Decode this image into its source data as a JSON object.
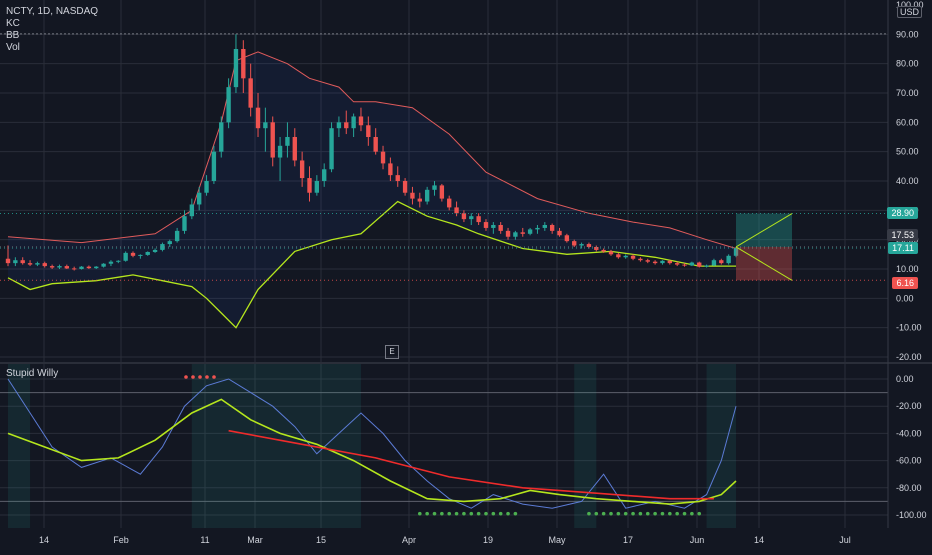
{
  "header": {
    "symbol_line": "NCTY, 1D, NASDAQ",
    "indicators": [
      "KC",
      "BB",
      "Vol"
    ],
    "currency_badge": "USD",
    "top_tick": "100.00"
  },
  "lower_pane": {
    "title": "Stupid Willy"
  },
  "earnings_marker": "E",
  "price_tags": [
    {
      "label": "28.90",
      "color": "#26a69a"
    },
    {
      "label": "17.53",
      "color": "#363a45"
    },
    {
      "label": "17.11",
      "color": "#26a69a"
    },
    {
      "label": "6.16",
      "color": "#ef5350"
    }
  ],
  "colors": {
    "background": "#131722",
    "bull": "#26a69a",
    "bear": "#ef5350",
    "kc_upper": "#e05b5b",
    "bb_lower": "#b5e61d",
    "grid": "#2a2e39",
    "text": "#d1d4dc"
  },
  "chart_data": [
    {
      "type": "candlestick",
      "title": "NCTY, 1D, NASDAQ",
      "x_ticks": [
        "14",
        "Feb",
        "11",
        "Mar",
        "15",
        "Apr",
        "19",
        "May",
        "17",
        "Jun",
        "14",
        "Jul"
      ],
      "y_ticks": [
        "-20.00",
        "-10.00",
        "0.00",
        "10.00",
        "20.00",
        "30.00",
        "40.00",
        "50.00",
        "60.00",
        "70.00",
        "80.00",
        "90.00",
        "100.00"
      ],
      "ylim": [
        -20,
        100
      ],
      "ohlc": [
        [
          13.5,
          18,
          11,
          12
        ],
        [
          12,
          14,
          11,
          13
        ],
        [
          13,
          14,
          11.5,
          12
        ],
        [
          12,
          13,
          11,
          11.5
        ],
        [
          11.5,
          12.5,
          11,
          12
        ],
        [
          12,
          12.5,
          10.5,
          11
        ],
        [
          11,
          11.5,
          10,
          10.5
        ],
        [
          10.5,
          11.5,
          10,
          11
        ],
        [
          11,
          11.5,
          10,
          10.2
        ],
        [
          10.2,
          10.8,
          9.5,
          10
        ],
        [
          10,
          11,
          9.8,
          10.8
        ],
        [
          10.8,
          11.2,
          10,
          10.3
        ],
        [
          10.3,
          11,
          10,
          10.8
        ],
        [
          10.8,
          12,
          10.5,
          11.8
        ],
        [
          11.8,
          13,
          11,
          12.5
        ],
        [
          12.5,
          13,
          12,
          12.8
        ],
        [
          12.8,
          16,
          12.5,
          15.5
        ],
        [
          15.5,
          16,
          14,
          14.5
        ],
        [
          14.5,
          15,
          13.5,
          14.8
        ],
        [
          14.8,
          16,
          14.5,
          15.8
        ],
        [
          15.8,
          17,
          15.5,
          16.5
        ],
        [
          16.5,
          19,
          16,
          18.5
        ],
        [
          18.5,
          20,
          17.5,
          19.5
        ],
        [
          19.5,
          24,
          19,
          23
        ],
        [
          23,
          30,
          22,
          28
        ],
        [
          28,
          34,
          27,
          32
        ],
        [
          32,
          38,
          30,
          36
        ],
        [
          36,
          42,
          35,
          40
        ],
        [
          40,
          52,
          39,
          50
        ],
        [
          50,
          62,
          48,
          60
        ],
        [
          60,
          75,
          58,
          72
        ],
        [
          72,
          90,
          70,
          85
        ],
        [
          85,
          88,
          70,
          75
        ],
        [
          75,
          80,
          62,
          65
        ],
        [
          65,
          70,
          55,
          58
        ],
        [
          58,
          65,
          50,
          60
        ],
        [
          60,
          62,
          45,
          48
        ],
        [
          48,
          55,
          40,
          52
        ],
        [
          52,
          60,
          48,
          55
        ],
        [
          55,
          58,
          45,
          47
        ],
        [
          47,
          50,
          38,
          41
        ],
        [
          41,
          45,
          33,
          36
        ],
        [
          36,
          42,
          35,
          40
        ],
        [
          40,
          46,
          38,
          44
        ],
        [
          44,
          60,
          43,
          58
        ],
        [
          58,
          62,
          55,
          60
        ],
        [
          60,
          64,
          56,
          58
        ],
        [
          58,
          63,
          55,
          62
        ],
        [
          62,
          65,
          57,
          59
        ],
        [
          59,
          62,
          52,
          55
        ],
        [
          55,
          58,
          49,
          50
        ],
        [
          50,
          52,
          44,
          46
        ],
        [
          46,
          48,
          40,
          42
        ],
        [
          42,
          45,
          38,
          40
        ],
        [
          40,
          41,
          35,
          36
        ],
        [
          36,
          38,
          32,
          34
        ],
        [
          34,
          36,
          31,
          33
        ],
        [
          33,
          38,
          32,
          37
        ],
        [
          37,
          40,
          35,
          38.5
        ],
        [
          38.5,
          39,
          33,
          34
        ],
        [
          34,
          35,
          30,
          31
        ],
        [
          31,
          33,
          28,
          29
        ],
        [
          29,
          30,
          26,
          27
        ],
        [
          27,
          29,
          25,
          28
        ],
        [
          28,
          29,
          25,
          26
        ],
        [
          26,
          27,
          23,
          24
        ],
        [
          24,
          26,
          22,
          25
        ],
        [
          25,
          26,
          22,
          23
        ],
        [
          23,
          24,
          20,
          21
        ],
        [
          21,
          23,
          20,
          22.5
        ],
        [
          22.5,
          24,
          21,
          22
        ],
        [
          22,
          24,
          21.5,
          23.5
        ],
        [
          23.5,
          25,
          22,
          24
        ],
        [
          24,
          26,
          23,
          25
        ],
        [
          25,
          25.5,
          22,
          23
        ],
        [
          23,
          24,
          21,
          21.5
        ],
        [
          21.5,
          22,
          19,
          19.5
        ],
        [
          19.5,
          20,
          17.5,
          18
        ],
        [
          18,
          19,
          17,
          18.5
        ],
        [
          18.5,
          19,
          17,
          17.5
        ],
        [
          17.5,
          18,
          16,
          16.5
        ],
        [
          16.5,
          17,
          15.5,
          16
        ],
        [
          16,
          16.5,
          14.5,
          15
        ],
        [
          15,
          15.5,
          13.5,
          14
        ],
        [
          14,
          15,
          13.5,
          14.5
        ],
        [
          14.5,
          15,
          13,
          13.5
        ],
        [
          13.5,
          14,
          12.5,
          13
        ],
        [
          13,
          13.5,
          12,
          12.5
        ],
        [
          12.5,
          13,
          11.5,
          12
        ],
        [
          12,
          13,
          11.5,
          12.8
        ],
        [
          12.8,
          13,
          11.5,
          12
        ],
        [
          12,
          12.5,
          11,
          11.5
        ],
        [
          11.5,
          12,
          10.8,
          11.2
        ],
        [
          11.2,
          12.5,
          11,
          12.2
        ],
        [
          12.2,
          12.5,
          10.5,
          10.8
        ],
        [
          10.8,
          11.5,
          10.5,
          11.2
        ],
        [
          11.2,
          13.5,
          11,
          13
        ],
        [
          13,
          13.5,
          11.5,
          12
        ],
        [
          12,
          15,
          11.5,
          14.5
        ],
        [
          14.5,
          17.5,
          14,
          17.1
        ]
      ],
      "kc_upper": [
        [
          0,
          21
        ],
        [
          10,
          19
        ],
        [
          20,
          22
        ],
        [
          25,
          30
        ],
        [
          29,
          60
        ],
        [
          31,
          81
        ],
        [
          34,
          84
        ],
        [
          38,
          80
        ],
        [
          41,
          75
        ],
        [
          45,
          72
        ],
        [
          47,
          67
        ],
        [
          50,
          67
        ],
        [
          55,
          65
        ],
        [
          60,
          56
        ],
        [
          65,
          43
        ],
        [
          72,
          34
        ],
        [
          79,
          29
        ],
        [
          85,
          26
        ],
        [
          90,
          24
        ],
        [
          95,
          20
        ],
        [
          99,
          17
        ]
      ],
      "bb_lower": [
        [
          0,
          7
        ],
        [
          3,
          3
        ],
        [
          6,
          5
        ],
        [
          12,
          6
        ],
        [
          17,
          8
        ],
        [
          21,
          6
        ],
        [
          25,
          4
        ],
        [
          27,
          0
        ],
        [
          29,
          -5
        ],
        [
          31,
          -10
        ],
        [
          34,
          3
        ],
        [
          39,
          16
        ],
        [
          44,
          20
        ],
        [
          48,
          22
        ],
        [
          53,
          33
        ],
        [
          57,
          28
        ],
        [
          61,
          25
        ],
        [
          64,
          22
        ],
        [
          70,
          17
        ],
        [
          76,
          15
        ],
        [
          82,
          16
        ],
        [
          88,
          14
        ],
        [
          94,
          11
        ],
        [
          99,
          11
        ]
      ],
      "trade_levels": {
        "target": 28.9,
        "entry": 17.53,
        "last": 17.11,
        "stop": 6.16
      }
    },
    {
      "type": "line",
      "title": "Stupid Willy",
      "y_ticks": [
        "0.00",
        "-20.00",
        "-40.00",
        "-60.00",
        "-80.00",
        "-100.00"
      ],
      "ylim": [
        -106,
        6
      ],
      "series": [
        {
          "color": "#5b7bd5",
          "values": [
            [
              0,
              0
            ],
            [
              3,
              -25
            ],
            [
              6,
              -50
            ],
            [
              10,
              -65
            ],
            [
              14,
              -58
            ],
            [
              18,
              -70
            ],
            [
              21,
              -50
            ],
            [
              24,
              -20
            ],
            [
              27,
              -5
            ],
            [
              30,
              0
            ],
            [
              33,
              -10
            ],
            [
              36,
              -20
            ],
            [
              39,
              -35
            ],
            [
              42,
              -55
            ],
            [
              45,
              -40
            ],
            [
              48,
              -25
            ],
            [
              51,
              -40
            ],
            [
              54,
              -60
            ],
            [
              57,
              -75
            ],
            [
              60,
              -88
            ],
            [
              63,
              -95
            ],
            [
              66,
              -85
            ],
            [
              70,
              -92
            ],
            [
              74,
              -95
            ],
            [
              78,
              -90
            ],
            [
              81,
              -70
            ],
            [
              84,
              -95
            ],
            [
              88,
              -90
            ],
            [
              92,
              -95
            ],
            [
              95,
              -85
            ],
            [
              97,
              -60
            ],
            [
              99,
              -20
            ]
          ]
        },
        {
          "color": "#b5e61d",
          "values": [
            [
              0,
              -40
            ],
            [
              5,
              -50
            ],
            [
              10,
              -60
            ],
            [
              15,
              -58
            ],
            [
              20,
              -45
            ],
            [
              25,
              -25
            ],
            [
              29,
              -15
            ],
            [
              33,
              -30
            ],
            [
              37,
              -40
            ],
            [
              42,
              -48
            ],
            [
              47,
              -60
            ],
            [
              52,
              -75
            ],
            [
              57,
              -88
            ],
            [
              62,
              -90
            ],
            [
              67,
              -88
            ],
            [
              71,
              -82
            ],
            [
              75,
              -85
            ],
            [
              80,
              -88
            ],
            [
              85,
              -90
            ],
            [
              90,
              -92
            ],
            [
              94,
              -90
            ],
            [
              97,
              -85
            ],
            [
              99,
              -75
            ]
          ]
        },
        {
          "color": "#ef2b2b",
          "values": [
            [
              30,
              -38
            ],
            [
              40,
              -48
            ],
            [
              50,
              -58
            ],
            [
              60,
              -72
            ],
            [
              70,
              -80
            ],
            [
              80,
              -84
            ],
            [
              90,
              -88
            ],
            [
              96,
              -88
            ]
          ]
        }
      ],
      "dot_signals_at": [
        56,
        57,
        58,
        59,
        60,
        61,
        62,
        63,
        64,
        65,
        66,
        67,
        68,
        69,
        79,
        80,
        81,
        82,
        83,
        84,
        85,
        86,
        87,
        88,
        89,
        90,
        91,
        92,
        93,
        94
      ]
    }
  ]
}
